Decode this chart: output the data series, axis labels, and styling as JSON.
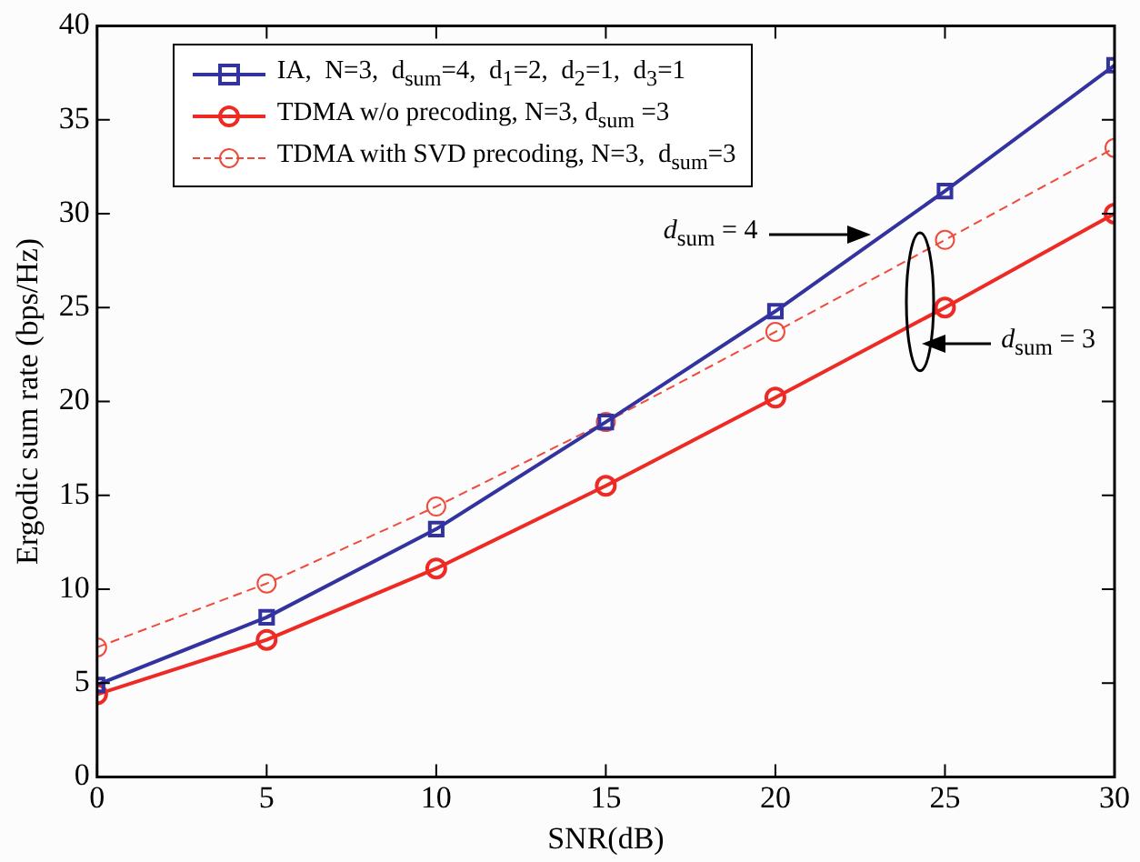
{
  "chart_data": {
    "type": "line",
    "xlabel": "SNR(dB)",
    "ylabel": "Ergodic sum rate (bps/Hz)",
    "x": [
      0,
      5,
      10,
      15,
      20,
      25,
      30
    ],
    "xlim": [
      0,
      30
    ],
    "xticks": [
      0,
      5,
      10,
      15,
      20,
      25,
      30
    ],
    "ylim": [
      0,
      40
    ],
    "yticks": [
      0,
      5,
      10,
      15,
      20,
      25,
      30,
      35,
      40
    ],
    "grid": false,
    "legend": "top left",
    "series": [
      {
        "name": "IA,  N=3,  d$_{sum}$=4,  d$_{1}$=2,  d$_{2}$=1,  d$_{3}$=1",
        "color": "#3333a0",
        "marker": "square",
        "line_style": "solid",
        "values": [
          4.9,
          8.5,
          13.2,
          18.9,
          24.8,
          31.2,
          37.9
        ]
      },
      {
        "name": "TDMA w/o precoding, N=3, d$_{sum}$ =3",
        "color": "#ee2a24",
        "marker": "circle",
        "line_style": "solid",
        "values": [
          4.4,
          7.3,
          11.1,
          15.5,
          20.2,
          25.0,
          30.0
        ]
      },
      {
        "name": "TDMA with SVD precoding, N=3,  d$_{sum}$=3",
        "color": "#f04a3a",
        "marker": "circle",
        "line_style": "dashed",
        "values": [
          6.9,
          10.3,
          14.4,
          18.9,
          23.7,
          28.6,
          33.5
        ]
      }
    ],
    "annotations": [
      "d$_{sum}$ = 4",
      "d$_{sum}$ = 3"
    ]
  }
}
